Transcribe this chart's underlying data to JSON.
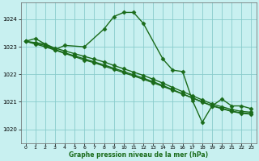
{
  "xlabel": "Graphe pression niveau de la mer (hPa)",
  "xlim": [
    -0.5,
    23.5
  ],
  "ylim": [
    1019.5,
    1024.6
  ],
  "yticks": [
    1020,
    1021,
    1022,
    1023,
    1024
  ],
  "xticks": [
    0,
    1,
    2,
    3,
    4,
    5,
    6,
    7,
    8,
    9,
    10,
    11,
    12,
    13,
    14,
    15,
    16,
    17,
    18,
    19,
    20,
    21,
    22,
    23
  ],
  "bg_color": "#c8f0f0",
  "grid_color": "#88cccc",
  "line_color": "#1a6b1a",
  "marker": "D",
  "markersize": 2.5,
  "linewidth": 1.0,
  "s0_x": [
    0,
    1,
    3,
    4,
    6,
    8,
    9,
    10,
    11,
    12,
    14,
    15,
    16,
    17,
    18,
    19,
    20,
    21,
    22,
    23
  ],
  "s0_y": [
    1023.2,
    1023.3,
    1022.9,
    1023.05,
    1023.0,
    1023.65,
    1024.1,
    1024.25,
    1024.25,
    1023.85,
    1022.55,
    1022.15,
    1022.1,
    1021.05,
    1020.25,
    1020.85,
    1021.1,
    1020.85,
    1020.85,
    1020.75
  ],
  "s1_x": [
    0,
    1,
    2,
    3,
    4,
    5,
    6,
    7,
    8,
    9,
    10,
    11,
    12,
    13,
    14,
    15,
    16,
    17,
    18,
    19,
    20,
    21,
    22,
    23
  ],
  "s1_y": [
    1023.2,
    1023.15,
    1023.1,
    1022.95,
    1022.85,
    1022.75,
    1022.65,
    1022.55,
    1022.45,
    1022.32,
    1022.2,
    1022.08,
    1021.96,
    1021.82,
    1021.68,
    1021.52,
    1021.37,
    1021.22,
    1021.07,
    1020.92,
    1020.82,
    1020.72,
    1020.65,
    1020.62
  ],
  "s2_x": [
    0,
    1,
    2,
    3,
    4,
    5,
    6,
    7,
    8,
    9,
    10,
    11,
    12,
    13,
    14,
    15,
    16,
    17,
    18,
    19,
    20,
    21,
    22,
    23
  ],
  "s2_y": [
    1023.2,
    1023.12,
    1023.05,
    1022.9,
    1022.78,
    1022.67,
    1022.56,
    1022.45,
    1022.34,
    1022.22,
    1022.1,
    1021.98,
    1021.86,
    1021.73,
    1021.59,
    1021.44,
    1021.29,
    1021.14,
    1020.99,
    1020.85,
    1020.75,
    1020.65,
    1020.58,
    1020.55
  ],
  "s3_x": [
    0,
    1,
    2,
    3,
    4,
    5,
    6,
    7,
    8,
    9,
    10,
    11,
    12,
    13,
    14,
    15,
    16,
    17,
    18,
    19,
    20,
    21,
    22,
    23
  ],
  "s3_y": [
    1023.2,
    1023.1,
    1023.0,
    1022.88,
    1022.76,
    1022.64,
    1022.52,
    1022.42,
    1022.3,
    1022.18,
    1022.06,
    1021.94,
    1021.82,
    1021.69,
    1021.56,
    1021.42,
    1021.28,
    1021.14,
    1021.0,
    1020.86,
    1020.76,
    1020.66,
    1020.6,
    1020.56
  ]
}
